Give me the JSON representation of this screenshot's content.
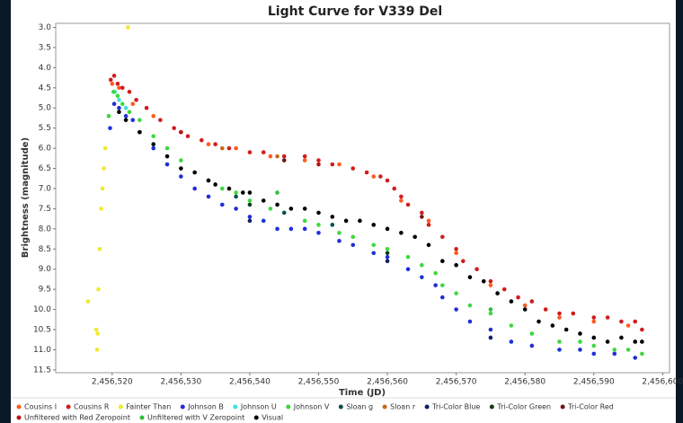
{
  "chart_data": {
    "type": "scatter",
    "title": "Light Curve for V339 Del",
    "x_label": "Time (JD)",
    "y_label": "Brightness (magnitude)",
    "xlim": [
      2456511.8,
      2456601
    ],
    "ylim": [
      11.57,
      2.9
    ],
    "xticks": [
      {
        "value": 2456520,
        "label": "2,456,520"
      },
      {
        "value": 2456530,
        "label": "2,456,530"
      },
      {
        "value": 2456540,
        "label": "2,456,540"
      },
      {
        "value": 2456550,
        "label": "2,456,550"
      },
      {
        "value": 2456560,
        "label": "2,456,560"
      },
      {
        "value": 2456570,
        "label": "2,456,570"
      },
      {
        "value": 2456580,
        "label": "2,456,580"
      },
      {
        "value": 2456590,
        "label": "2,456,590"
      },
      {
        "value": 2456600,
        "label": "2,456,600"
      }
    ],
    "yticks": [
      {
        "value": 3,
        "label": "3.0"
      },
      3.5,
      {
        "value": 4,
        "label": "4.0"
      },
      4.5,
      {
        "value": 5,
        "label": "5.0"
      },
      5.5,
      {
        "value": 6,
        "label": "6.0"
      },
      6.5,
      {
        "value": 7,
        "label": "7.0"
      },
      7.5,
      {
        "value": 8,
        "label": "8.0"
      },
      8.5,
      {
        "value": 9,
        "label": "9.0"
      },
      9.5,
      {
        "value": 10,
        "label": "10.0"
      },
      10.5,
      {
        "value": 11,
        "label": "11.0"
      },
      11.5
    ],
    "series": [
      {
        "name": "Cousins I",
        "color": "#ff5a1e",
        "x": [
          2456520,
          2456521,
          2456523,
          2456526,
          2456530,
          2456534,
          2456538,
          2456543,
          2456548,
          2456553,
          2456558,
          2456562,
          2456566,
          2456570,
          2456575,
          2456580,
          2456585,
          2456590,
          2456595
        ],
        "values": [
          4.4,
          4.5,
          4.9,
          5.2,
          5.6,
          5.9,
          6.0,
          6.2,
          6.3,
          6.4,
          6.7,
          7.3,
          7.8,
          8.6,
          9.4,
          9.9,
          10.2,
          10.3,
          10.4
        ]
      },
      {
        "name": "Cousins R",
        "color": "#d21c1c",
        "x": [
          2456519.8,
          2456520.3,
          2456520.8,
          2456521.5,
          2456522.5,
          2456523.5,
          2456525,
          2456527,
          2456529,
          2456531,
          2456533,
          2456535,
          2456537,
          2456540,
          2456542,
          2456545,
          2456548,
          2456550,
          2456552,
          2456555,
          2456557,
          2456559,
          2456560,
          2456561,
          2456562,
          2456563,
          2456565,
          2456566,
          2456568,
          2456570,
          2456571,
          2456573,
          2456575,
          2456577,
          2456579,
          2456581,
          2456583,
          2456585,
          2456587,
          2456590,
          2456592,
          2456594,
          2456596,
          2456597
        ],
        "values": [
          4.3,
          4.2,
          4.4,
          4.5,
          4.6,
          4.8,
          5.0,
          5.3,
          5.5,
          5.7,
          5.8,
          5.9,
          6.0,
          6.1,
          6.1,
          6.2,
          6.2,
          6.3,
          6.4,
          6.5,
          6.6,
          6.7,
          6.8,
          7.0,
          7.2,
          7.4,
          7.6,
          7.9,
          8.2,
          8.5,
          8.8,
          9.0,
          9.3,
          9.5,
          9.7,
          9.8,
          10.0,
          10.1,
          10.1,
          10.2,
          10.2,
          10.3,
          10.3,
          10.5
        ]
      },
      {
        "name": "Fainter Than",
        "color": "#f2e82a",
        "x": [
          2456516.5,
          2456517.7,
          2456517.8,
          2456517.9,
          2456518.0,
          2456518.2,
          2456518.4,
          2456518.6,
          2456518.8,
          2456519.0,
          2456522.3
        ],
        "values": [
          9.8,
          10.5,
          11.0,
          10.6,
          9.5,
          8.5,
          7.5,
          7.0,
          6.5,
          6.0,
          3.0
        ]
      },
      {
        "name": "Johnson B",
        "color": "#1f2fd8",
        "x": [
          2456519.7,
          2456520.3,
          2456521,
          2456522,
          2456523,
          2456524,
          2456526,
          2456528,
          2456530,
          2456532,
          2456534,
          2456536,
          2456538,
          2456540,
          2456542,
          2456544,
          2456546,
          2456548,
          2456550,
          2456553,
          2456555,
          2456558,
          2456560,
          2456563,
          2456565,
          2456567,
          2456568,
          2456570,
          2456572,
          2456575,
          2456578,
          2456581,
          2456585,
          2456588,
          2456590,
          2456593,
          2456596
        ],
        "values": [
          5.5,
          4.9,
          5.0,
          5.2,
          5.3,
          5.6,
          6.0,
          6.4,
          6.7,
          7.0,
          7.2,
          7.4,
          7.5,
          7.7,
          7.8,
          8.0,
          8.0,
          8.0,
          8.1,
          8.3,
          8.4,
          8.6,
          8.7,
          9.0,
          9.2,
          9.4,
          9.7,
          10.0,
          10.3,
          10.5,
          10.8,
          10.9,
          11.0,
          11.0,
          11.1,
          11.1,
          11.2
        ]
      },
      {
        "name": "Johnson U",
        "color": "#3fe0e0",
        "x": [
          2456520.4,
          2456521.0,
          2456522.0
        ],
        "values": [
          4.6,
          4.8,
          5.0
        ]
      },
      {
        "name": "Johnson V",
        "color": "#3ed83e",
        "x": [
          2456519.5,
          2456520.2,
          2456520.8,
          2456521.5,
          2456522.5,
          2456524,
          2456526,
          2456528,
          2456530,
          2456532,
          2456534,
          2456536,
          2456538,
          2456540,
          2456543,
          2456545,
          2456548,
          2456550,
          2456553,
          2456555,
          2456558,
          2456560,
          2456563,
          2456565,
          2456567,
          2456568,
          2456570,
          2456572,
          2456575,
          2456578,
          2456581,
          2456585,
          2456588,
          2456590,
          2456593,
          2456595,
          2456597
        ],
        "values": [
          5.2,
          4.6,
          4.7,
          4.9,
          5.1,
          5.3,
          5.7,
          6.0,
          6.3,
          6.6,
          6.8,
          7.0,
          7.1,
          7.3,
          7.5,
          7.6,
          7.8,
          7.9,
          8.1,
          8.2,
          8.4,
          8.5,
          8.7,
          8.9,
          9.1,
          9.4,
          9.6,
          9.9,
          10.1,
          10.4,
          10.6,
          10.8,
          10.8,
          10.9,
          11.0,
          11.0,
          11.1
        ]
      },
      {
        "name": "Sloan g",
        "color": "#0c4f4f",
        "x": [
          2456538,
          2456545,
          2456552
        ],
        "values": [
          7.2,
          7.6,
          7.9
        ]
      },
      {
        "name": "Sloan r",
        "color": "#c46a1a",
        "x": [
          2456536,
          2456544
        ],
        "values": [
          6.0,
          6.2
        ]
      },
      {
        "name": "Tri-Color Blue",
        "color": "#13205e",
        "x": [
          2456540,
          2456560,
          2456575
        ],
        "values": [
          7.8,
          8.8,
          10.7
        ]
      },
      {
        "name": "Tri-Color Green",
        "color": "#0f3d16",
        "x": [
          2456540,
          2456560
        ],
        "values": [
          7.4,
          8.6
        ]
      },
      {
        "name": "Tri-Color Red",
        "color": "#6e1414",
        "x": [
          2456545,
          2456565
        ],
        "values": [
          6.3,
          7.7
        ]
      },
      {
        "name": "Unfiltered with Red Zeropoint",
        "color": "#b81414",
        "x": [
          2456530,
          2456550
        ],
        "values": [
          5.6,
          6.4
        ]
      },
      {
        "name": "Unfiltered with V Zeropoint",
        "color": "#2fbf3a",
        "x": [
          2456544,
          2456575
        ],
        "values": [
          7.1,
          10.0
        ]
      },
      {
        "name": "Visual",
        "color": "#000000",
        "x": [
          2456521,
          2456522,
          2456524,
          2456526,
          2456528,
          2456530,
          2456532,
          2456534,
          2456535,
          2456537,
          2456539,
          2456540,
          2456542,
          2456544,
          2456546,
          2456548,
          2456550,
          2456552,
          2456554,
          2456556,
          2456558,
          2456560,
          2456562,
          2456564,
          2456566,
          2456568,
          2456570,
          2456572,
          2456574,
          2456576,
          2456578,
          2456580,
          2456582,
          2456584,
          2456586,
          2456588,
          2456590,
          2456592,
          2456594,
          2456596,
          2456597
        ],
        "values": [
          5.1,
          5.3,
          5.6,
          5.9,
          6.2,
          6.5,
          6.6,
          6.8,
          6.9,
          7.0,
          7.1,
          7.1,
          7.3,
          7.4,
          7.5,
          7.5,
          7.6,
          7.7,
          7.8,
          7.8,
          7.9,
          8.0,
          8.1,
          8.2,
          8.4,
          8.8,
          8.9,
          9.2,
          9.3,
          9.6,
          9.8,
          10.0,
          10.3,
          10.4,
          10.5,
          10.6,
          10.7,
          10.8,
          10.7,
          10.8,
          10.8
        ]
      }
    ]
  }
}
